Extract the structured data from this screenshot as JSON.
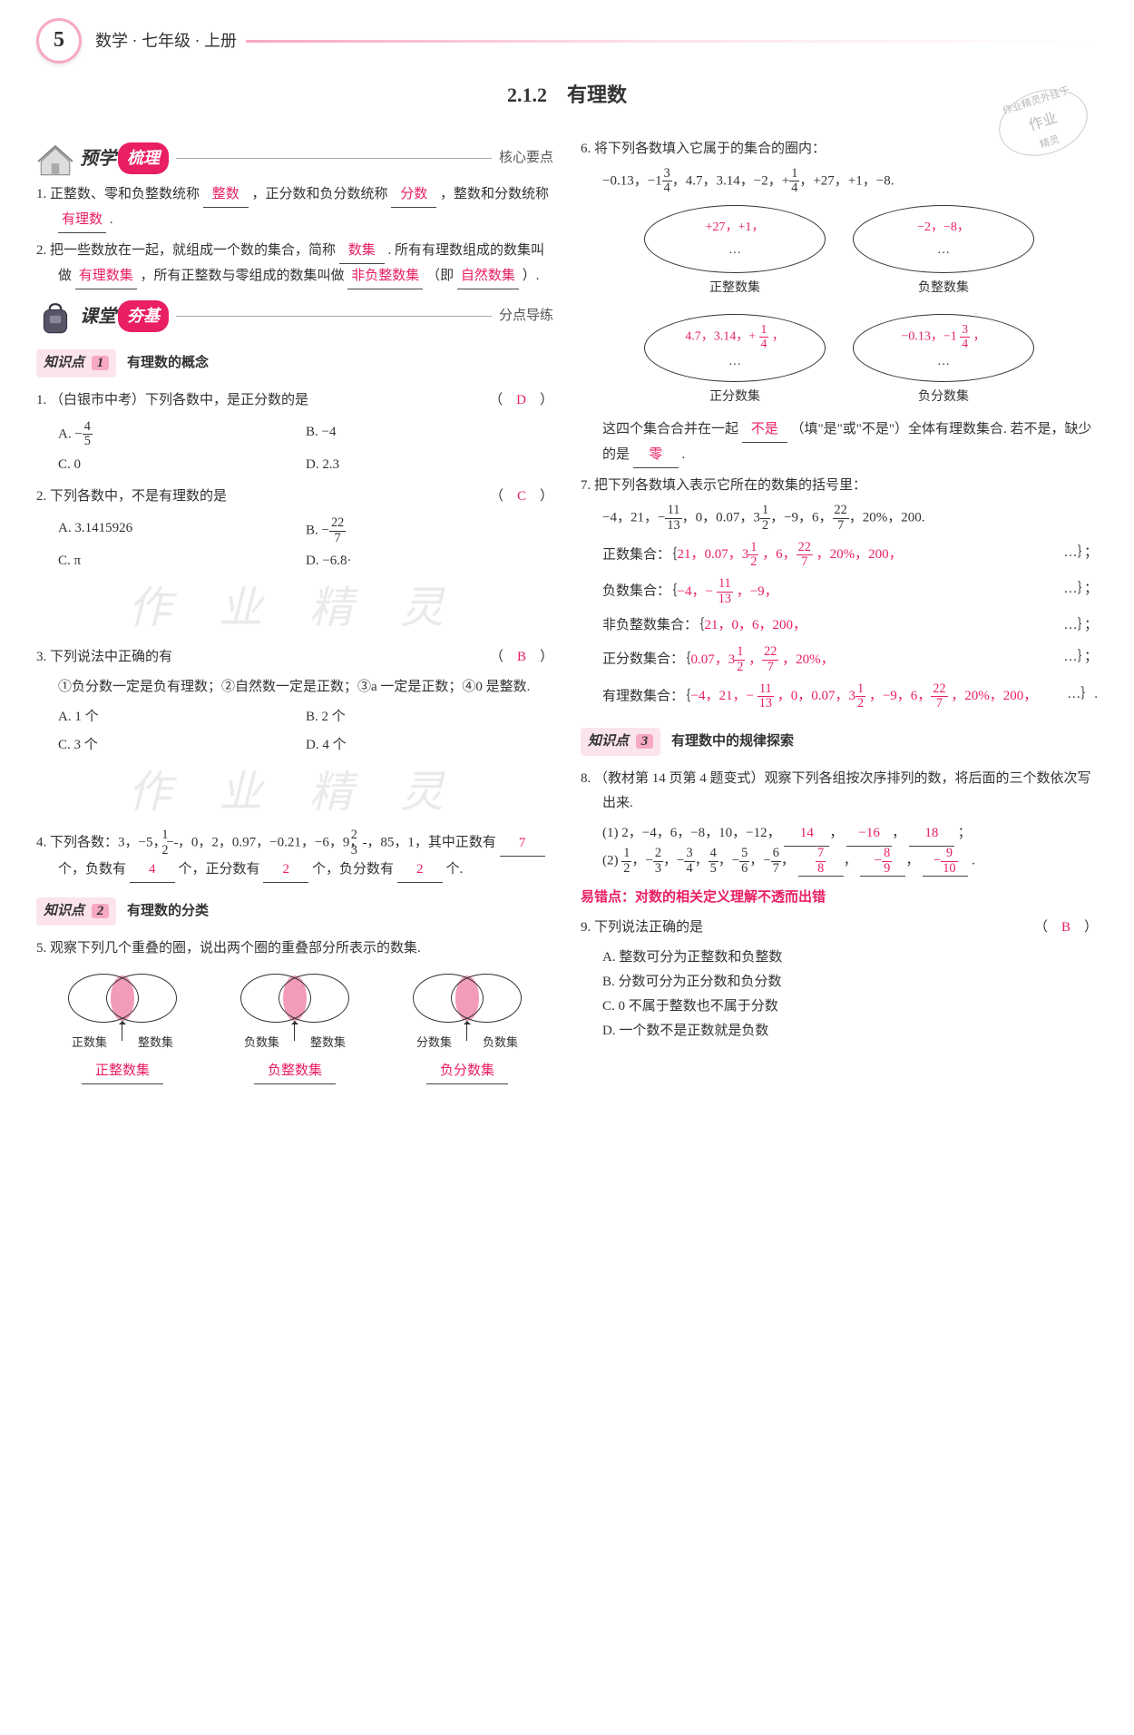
{
  "page_number": "5",
  "header_title": "数学 · 七年级 · 上册",
  "section_title": "2.1.2　有理数",
  "stamp": {
    "l1": "作业精灵外挂于",
    "l2": "作业",
    "l3": "精灵"
  },
  "box1": {
    "icon": "house",
    "main": "预学",
    "pill": "梳理",
    "sub": "核心要点"
  },
  "box2": {
    "icon": "backpack",
    "main": "课堂",
    "pill": "夯基",
    "sub": "分点导练"
  },
  "kp1": {
    "label": "知识点",
    "num": "1",
    "title": "有理数的概念"
  },
  "kp2": {
    "label": "知识点",
    "num": "2",
    "title": "有理数的分类"
  },
  "kp3": {
    "label": "知识点",
    "num": "3",
    "title": "有理数中的规律探索"
  },
  "pre1": {
    "text_a": "1. 正整数、零和负整数统称",
    "ans_a": "整数",
    "text_b": "，正分数和负分数统称",
    "ans_b": "分数",
    "text_c": "，整数和分数统称",
    "ans_c": "有理数",
    "text_d": "."
  },
  "pre2": {
    "text_a": "2. 把一些数放在一起，就组成一个数的集合，简称",
    "ans_a": "数集",
    "text_b": ". 所有有理数组成的数集叫做",
    "ans_b": "有理数集",
    "text_c": "，所有正整数与零组成的数集叫做",
    "ans_c": "非负整数集",
    "text_d": "（即",
    "ans_d": "自然数集",
    "text_e": "）."
  },
  "q1": {
    "stem": "1. （白银市中考）下列各数中，是正分数的是",
    "ans": "D",
    "A": "A. − 4/5",
    "B": "B. −4",
    "C": "C. 0",
    "D": "D. 2.3"
  },
  "q2": {
    "stem": "2. 下列各数中，不是有理数的是",
    "ans": "C",
    "A": "A. 3.1415926",
    "B": "B. − 22/7",
    "C": "C. π",
    "D": "D. −6.8·"
  },
  "q3": {
    "stem": "3. 下列说法中正确的有",
    "ans": "B",
    "lines": "①负分数一定是负有理数；②自然数一定是正数；③a 一定是正数；④0 是整数.",
    "A": "A. 1 个",
    "B": "B. 2 个",
    "C": "C. 3 个",
    "D": "D. 4 个"
  },
  "q4": {
    "stem_a": "4. 下列各数：3，−5，− 1/2 ，0，2，0.97，−0.21，−6，9，",
    "stem_b": "2/3 ，85，1，其中正数有",
    "ans_pos": "7",
    "text_b": "个，负数有",
    "ans_neg": "4",
    "text_c": "个，正分数有",
    "ans_pf": "2",
    "text_d": "个，负分数有",
    "ans_nf": "2",
    "text_e": "个."
  },
  "q5": {
    "stem": "5. 观察下列几个重叠的圈，说出两个圈的重叠部分所表示的数集.",
    "venns": [
      {
        "l": "正数集",
        "r": "整数集",
        "ans": "正整数集"
      },
      {
        "l": "负数集",
        "r": "整数集",
        "ans": "负整数集"
      },
      {
        "l": "分数集",
        "r": "负数集",
        "ans": "负分数集"
      }
    ]
  },
  "q6": {
    "stem": "6. 将下列各数填入它属于的集合的圈内：",
    "nums": "−0.13，−1 3/4 ，4.7，3.14，−2，+ 1/4 ，+27，+1，−8.",
    "ovals": [
      {
        "content": "+27，+1，",
        "label": "正整数集"
      },
      {
        "content": "−2，−8，",
        "label": "负整数集"
      },
      {
        "content": "4.7，3.14，+ 1/4 ，",
        "label": "正分数集"
      },
      {
        "content": "−0.13，−1 3/4 ，",
        "label": "负分数集"
      }
    ],
    "tail_a": "这四个集合合并在一起",
    "tail_ans1": "不是",
    "tail_b": "（填\"是\"或\"不是\"）全体有理数集合. 若不是，缺少的是",
    "tail_ans2": "零",
    "tail_c": "."
  },
  "q7": {
    "stem": "7. 把下列各数填入表示它所在的数集的括号里：",
    "nums": "−4，21，− 11/13 ，0，0.07，3 1/2 ，−9，6，22/7 ，20%，200.",
    "sets": [
      {
        "label": "正数集合：｛",
        "ans": "21，0.07，3 1/2 ，6，22/7 ，20%，200，",
        "tail": "…｝；"
      },
      {
        "label": "负数集合：｛",
        "ans": "−4，− 11/13 ，−9，",
        "tail": "…｝；"
      },
      {
        "label": "非负整数集合：｛",
        "ans": "21，0，6，200，",
        "tail": "…｝；"
      },
      {
        "label": "正分数集合：｛",
        "ans": "0.07，3 1/2 ，22/7 ，20%，",
        "tail": "…｝；"
      },
      {
        "label": "有理数集合：｛",
        "ans": "−4，21，− 11/13 ，0，0.07，3 1/2 ，−9，6，22/7 ，20%，200，",
        "tail": "…｝."
      }
    ]
  },
  "q8": {
    "stem": "8. （教材第 14 页第 4 题变式）观察下列各组按次序排列的数，将后面的三个数依次写出来.",
    "p1_a": "(1) 2，−4，6，−8，10，−12，",
    "p1_ans": [
      "14",
      "−16",
      "18"
    ],
    "p1_b": "；",
    "p2_a": "(2) 1/2，− 2/3，− 3/4，4/5，− 5/6，− 6/7，",
    "p2_ans": [
      "7/8",
      "− 8/9",
      "− 9/10"
    ],
    "p2_b": "."
  },
  "err_note": "易错点：对数的相关定义理解不透而出错",
  "q9": {
    "stem": "9. 下列说法正确的是",
    "ans": "B",
    "A": "A. 整数可分为正整数和负整数",
    "B": "B. 分数可分为正分数和负分数",
    "C": "C. 0 不属于整数也不属于分数",
    "D": "D. 一个数不是正数就是负数"
  },
  "watermark": "作 业 精 灵"
}
